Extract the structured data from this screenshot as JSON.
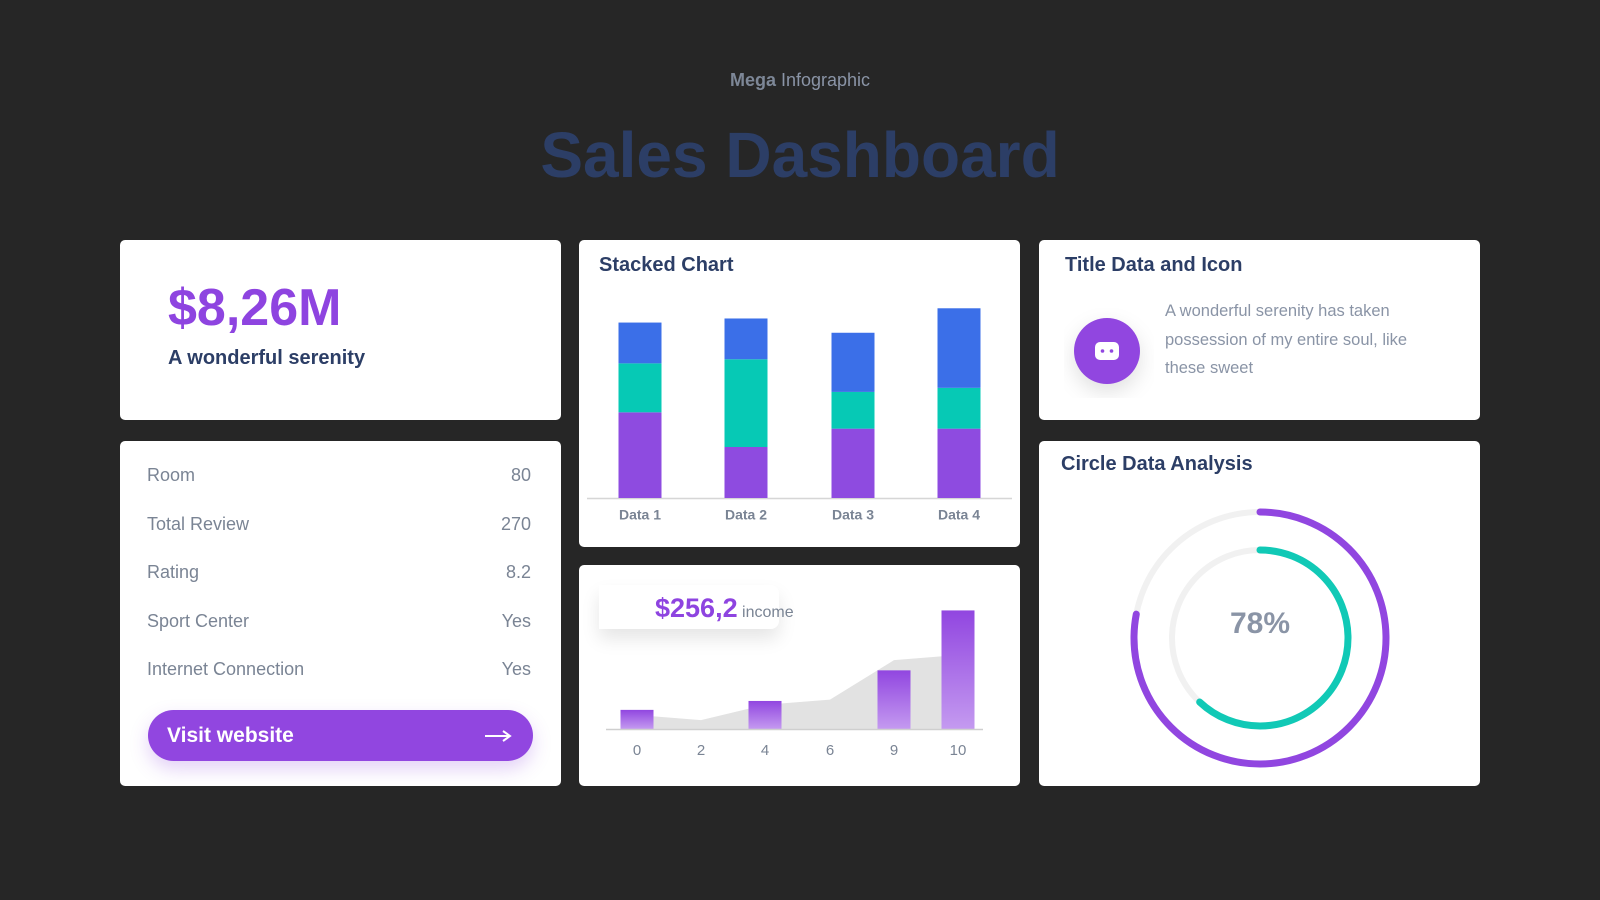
{
  "header": {
    "eyebrow_bold": "Mega",
    "eyebrow": "Infographic",
    "title": "Sales Dashboard"
  },
  "kpi": {
    "value": "$8,26M",
    "label": "A wonderful serenity"
  },
  "details": {
    "rows": [
      [
        "Room",
        "80"
      ],
      [
        "Total Review",
        "270"
      ],
      [
        "Rating",
        "8.2"
      ],
      [
        "Sport Center",
        "Yes"
      ],
      [
        "Internet Connection",
        "Yes"
      ]
    ],
    "button": "Visit website"
  },
  "info": {
    "title": "Title Data and Icon",
    "text": "A wonderful serenity has taken possession of my entire soul, like these sweet"
  },
  "chart_data": [
    {
      "type": "stacked_bar",
      "title": "Stacked Chart",
      "categories": [
        "Data 1",
        "Data 2",
        "Data 3",
        "Data 4"
      ],
      "ylim": [
        0,
        100
      ],
      "series": [
        {
          "color": "#8e4be0",
          "values": [
            42,
            25,
            34,
            34
          ]
        },
        {
          "color": "#06c9b5",
          "values": [
            24,
            43,
            18,
            20
          ]
        },
        {
          "color": "#3b6fe8",
          "values": [
            20,
            20,
            29,
            39
          ]
        }
      ]
    },
    {
      "type": "combo",
      "annotation": {
        "value": "$256,2",
        "label": "income"
      },
      "categories": [
        "0",
        "2",
        "4",
        "6",
        "9",
        "10"
      ],
      "ylim": [
        0,
        100
      ],
      "series": [
        {
          "type": "area",
          "color": "#e2e2e2",
          "values": [
            11,
            7,
            19,
            23,
            54,
            58
          ]
        },
        {
          "type": "bar",
          "color": "#9146e0",
          "values": [
            15,
            null,
            22,
            null,
            46,
            93
          ]
        }
      ]
    },
    {
      "type": "radial",
      "title": "Circle Data Analysis",
      "range": [
        0,
        100
      ],
      "values": [
        78,
        62
      ],
      "value_labels": [
        "78%",
        null
      ],
      "colors": [
        "#9146e0",
        "#11c9b6"
      ],
      "track_color": "#f1f1f1"
    }
  ]
}
